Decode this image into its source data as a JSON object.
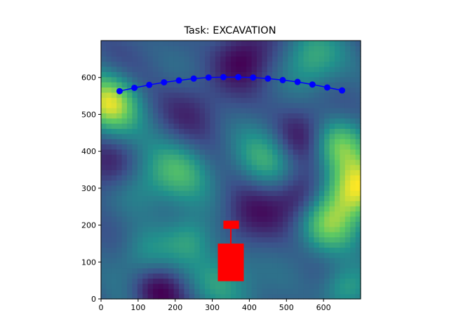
{
  "title": "Task: EXCAVATION",
  "chart_data": {
    "type": "heatmap",
    "title": "Task: EXCAVATION",
    "xlim": [
      0,
      700
    ],
    "ylim": [
      0,
      700
    ],
    "x_ticks": [
      0,
      100,
      200,
      300,
      400,
      500,
      600
    ],
    "y_ticks": [
      0,
      100,
      200,
      300,
      400,
      500,
      600
    ],
    "colormap": "viridis",
    "terrain_peaks": [
      {
        "x": 20,
        "y": 530,
        "amp": 1.0,
        "r": 55
      },
      {
        "x": 690,
        "y": 300,
        "amp": 1.1,
        "r": 60
      },
      {
        "x": 640,
        "y": 420,
        "amp": 0.7,
        "r": 50
      },
      {
        "x": 610,
        "y": 200,
        "amp": 0.6,
        "r": 55
      },
      {
        "x": 210,
        "y": 350,
        "amp": 0.55,
        "r": 60
      },
      {
        "x": 450,
        "y": 380,
        "amp": 0.45,
        "r": 60
      },
      {
        "x": 560,
        "y": 650,
        "amp": 0.45,
        "r": 55
      },
      {
        "x": 320,
        "y": 50,
        "amp": 0.45,
        "r": 60
      },
      {
        "x": 120,
        "y": 120,
        "amp": 0.35,
        "r": 55
      },
      {
        "x": 240,
        "y": 160,
        "amp": 0.35,
        "r": 45
      },
      {
        "x": 660,
        "y": 30,
        "amp": 0.5,
        "r": 45
      },
      {
        "x": 100,
        "y": 300,
        "amp": 0.3,
        "r": 55
      },
      {
        "x": 380,
        "y": 650,
        "amp": -0.45,
        "r": 55
      },
      {
        "x": 530,
        "y": 440,
        "amp": -0.4,
        "r": 55
      },
      {
        "x": 540,
        "y": 280,
        "amp": -0.45,
        "r": 50
      },
      {
        "x": 20,
        "y": 360,
        "amp": -0.35,
        "r": 55
      },
      {
        "x": 150,
        "y": 20,
        "amp": -0.5,
        "r": 50
      },
      {
        "x": 400,
        "y": 230,
        "amp": -0.3,
        "r": 60
      },
      {
        "x": 240,
        "y": 520,
        "amp": -0.25,
        "r": 60
      }
    ],
    "path_points": [
      {
        "x": 50,
        "y": 563
      },
      {
        "x": 90,
        "y": 572
      },
      {
        "x": 130,
        "y": 580
      },
      {
        "x": 170,
        "y": 587
      },
      {
        "x": 210,
        "y": 592
      },
      {
        "x": 250,
        "y": 597
      },
      {
        "x": 290,
        "y": 600
      },
      {
        "x": 330,
        "y": 601
      },
      {
        "x": 370,
        "y": 601
      },
      {
        "x": 410,
        "y": 600
      },
      {
        "x": 450,
        "y": 597
      },
      {
        "x": 490,
        "y": 593
      },
      {
        "x": 530,
        "y": 588
      },
      {
        "x": 570,
        "y": 581
      },
      {
        "x": 610,
        "y": 573
      },
      {
        "x": 650,
        "y": 565
      }
    ],
    "path_color": "#0000ff",
    "machine": {
      "color": "#ff0000",
      "body": {
        "x0": 315,
        "x1": 385,
        "y0": 48,
        "y1": 150
      },
      "arm": {
        "x": 350,
        "y0": 150,
        "y1": 192
      },
      "bucket": {
        "x0": 330,
        "x1": 372,
        "y0": 190,
        "y1": 212
      }
    }
  }
}
